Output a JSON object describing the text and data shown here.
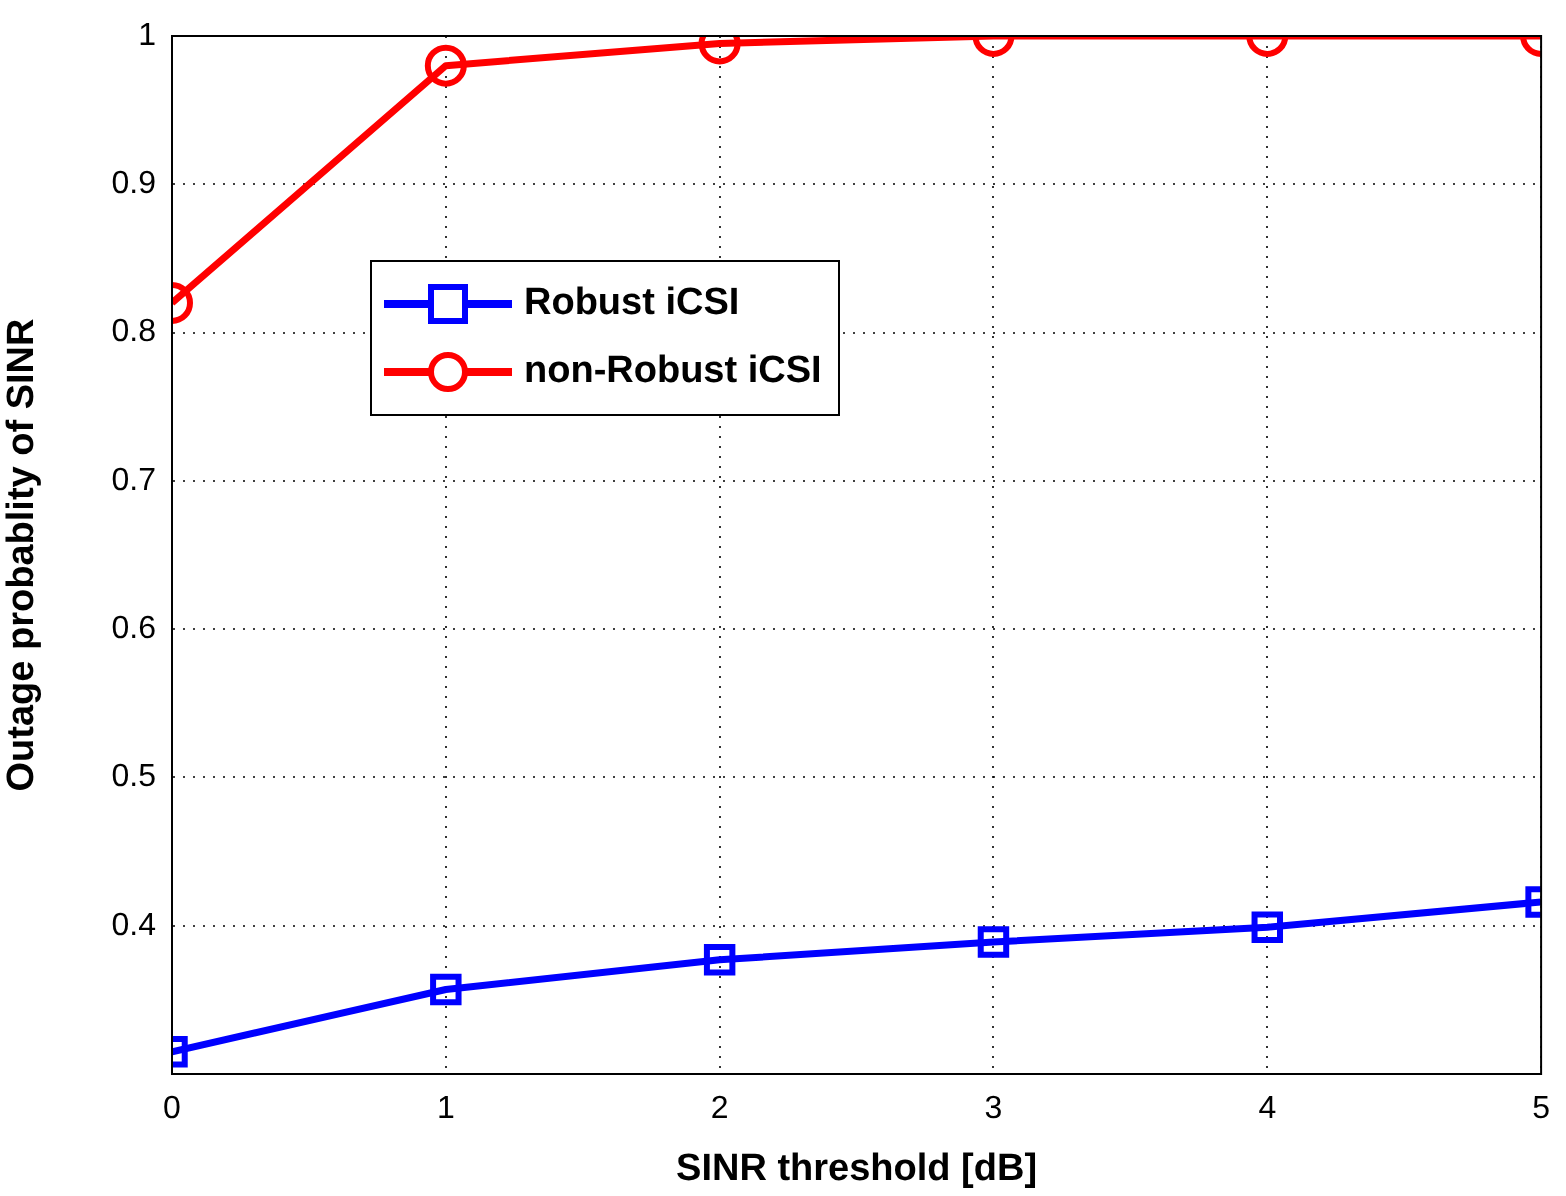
{
  "chart_data": {
    "type": "line",
    "xlabel": "SINR threshold [dB]",
    "ylabel": "Outage probablity of SINR",
    "x": [
      0,
      1,
      2,
      3,
      4,
      5
    ],
    "series": [
      {
        "name": "Robust iCSI",
        "color": "#0000ff",
        "marker": "square",
        "values": [
          0.315,
          0.357,
          0.377,
          0.389,
          0.399,
          0.416
        ]
      },
      {
        "name": "non-Robust iCSI",
        "color": "#ff0000",
        "marker": "circle",
        "values": [
          0.82,
          0.98,
          0.995,
          1,
          1,
          1
        ]
      }
    ],
    "xlim": [
      0,
      5
    ],
    "xticks": [
      0,
      1,
      2,
      3,
      4,
      5
    ],
    "ylim": [
      0.3,
      1
    ],
    "yticks": [
      0.4,
      0.5,
      0.6,
      0.7,
      0.8,
      0.9,
      1
    ],
    "grid": true,
    "legend": "top left",
    "line_style": "solid"
  }
}
